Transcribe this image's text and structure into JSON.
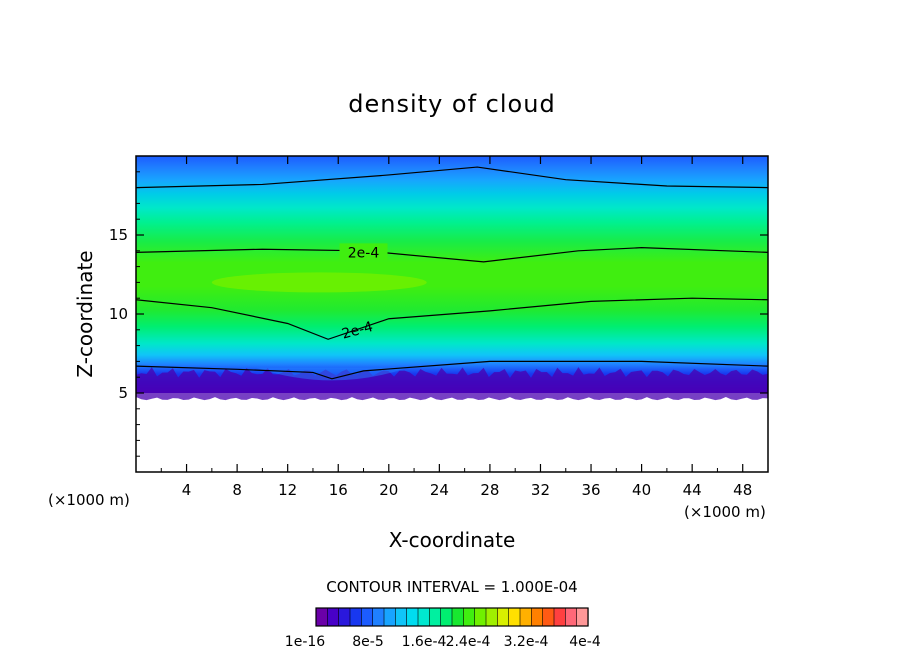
{
  "chart_data": {
    "type": "contour",
    "title": "density of cloud",
    "xlabel": "X-coordinate",
    "ylabel": "Z-coordinate",
    "x_unit_label": "(×1000 m)",
    "xlim": [
      0,
      50
    ],
    "ylim": [
      0,
      20
    ],
    "x_ticks": [
      4,
      8,
      12,
      16,
      20,
      24,
      28,
      32,
      36,
      40,
      44,
      48
    ],
    "y_ticks": [
      5,
      10,
      15
    ],
    "contour_interval_label": "CONTOUR INTERVAL = 1.000E-04",
    "contour_line_labels": [
      "2e-4",
      "2e-4"
    ],
    "colorbar": {
      "tick_labels": [
        "1e-16",
        "8e-5",
        "1.6e-4",
        "2.4e-4",
        "3.2e-4",
        "4e-4"
      ],
      "colors": [
        "#6a00a8",
        "#4800c8",
        "#2a18dc",
        "#1838f0",
        "#1c5cff",
        "#1f80ff",
        "#18a4ff",
        "#10c4f8",
        "#00dcf0",
        "#00e8d0",
        "#00f0a0",
        "#00ee70",
        "#18e830",
        "#40ee10",
        "#70f000",
        "#a0f000",
        "#d8f000",
        "#ffe000",
        "#ffb000",
        "#ff8000",
        "#ff5a14",
        "#ff4040",
        "#ff6878",
        "#ff9898"
      ]
    },
    "field": {
      "cloud_base_km": 5.0,
      "dense_bottom_layer_km": [
        5,
        6.3
      ],
      "max_core": {
        "x_range": [
          6,
          23
        ],
        "z": 12,
        "value": 0.00028
      },
      "min_dip": {
        "x": 15.5,
        "z": 6
      }
    }
  }
}
